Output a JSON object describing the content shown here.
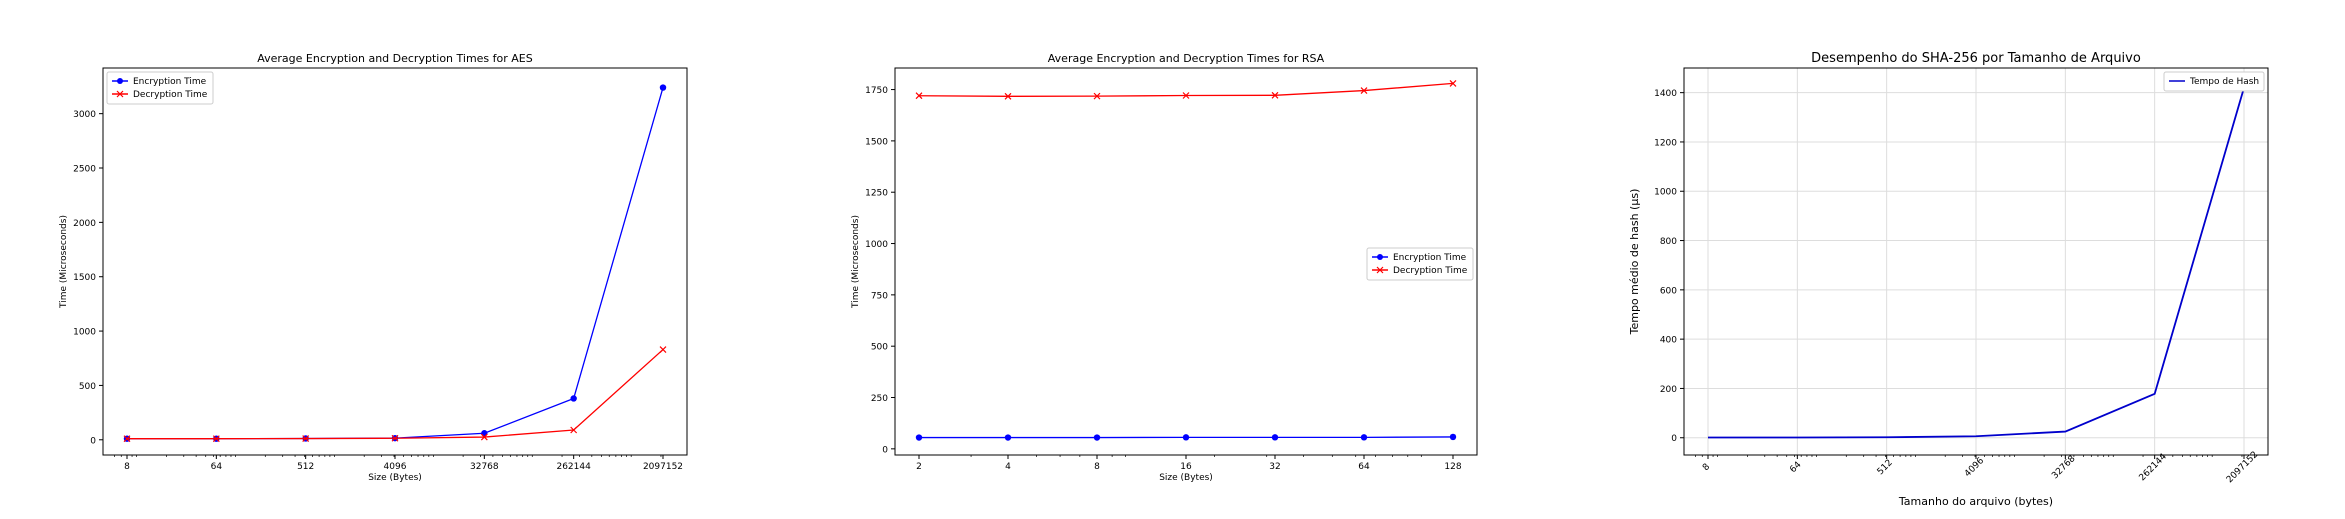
{
  "chart_data": [
    {
      "type": "line",
      "title": "Average Encryption and Decryption Times for AES",
      "xlabel": "Size (Bytes)",
      "ylabel": "Time (Microseconds)",
      "x_scale": "log2",
      "x": [
        8,
        64,
        512,
        4096,
        32768,
        262144,
        2097152
      ],
      "xticks": [
        "8",
        "64",
        "512",
        "4096",
        "32768",
        "262144",
        "2097152"
      ],
      "yticks": [
        0,
        500,
        1000,
        1500,
        2000,
        2500,
        3000
      ],
      "ylim": [
        -140,
        3420
      ],
      "grid": false,
      "legend_position": "upper-left",
      "series": [
        {
          "name": "Encryption Time",
          "color": "#0000ff",
          "marker": "circle",
          "values": [
            10,
            10,
            12,
            15,
            60,
            380,
            3240
          ]
        },
        {
          "name": "Decryption Time",
          "color": "#ff0000",
          "marker": "x",
          "values": [
            10,
            10,
            11,
            14,
            25,
            90,
            830
          ]
        }
      ]
    },
    {
      "type": "line",
      "title": "Average Encryption and Decryption Times for RSA",
      "xlabel": "Size (Bytes)",
      "ylabel": "Time (Microseconds)",
      "x_scale": "log2",
      "x": [
        2,
        4,
        8,
        16,
        32,
        64,
        128
      ],
      "xticks": [
        "2",
        "4",
        "8",
        "16",
        "32",
        "64",
        "128"
      ],
      "yticks": [
        0,
        250,
        500,
        750,
        1000,
        1250,
        1500,
        1750
      ],
      "ylim": [
        -30,
        1855
      ],
      "grid": false,
      "legend_position": "center-right",
      "series": [
        {
          "name": "Encryption Time",
          "color": "#0000ff",
          "marker": "circle",
          "values": [
            55,
            55,
            55,
            56,
            56,
            56,
            58
          ]
        },
        {
          "name": "Decryption Time",
          "color": "#ff0000",
          "marker": "x",
          "values": [
            1720,
            1717,
            1718,
            1721,
            1722,
            1745,
            1780
          ]
        }
      ]
    },
    {
      "type": "line",
      "title": "Desempenho do SHA-256 por Tamanho de Arquivo",
      "xlabel": "Tamanho do arquivo (bytes)",
      "ylabel": "Tempo médio de hash (µs)",
      "x_scale": "log2",
      "x": [
        8,
        64,
        512,
        4096,
        32768,
        262144,
        2097152
      ],
      "xticks": [
        "8",
        "64",
        "512",
        "4096",
        "32768",
        "262144",
        "2097152"
      ],
      "xtick_rotation": -45,
      "yticks": [
        0,
        200,
        400,
        600,
        800,
        1000,
        1200,
        1400
      ],
      "ylim": [
        -70,
        1500
      ],
      "grid": true,
      "legend_position": "upper-right",
      "series": [
        {
          "name": "Tempo de Hash",
          "color": "#0000cc",
          "marker": "none",
          "values": [
            1,
            1,
            2,
            6,
            25,
            178,
            1420
          ]
        }
      ]
    }
  ]
}
